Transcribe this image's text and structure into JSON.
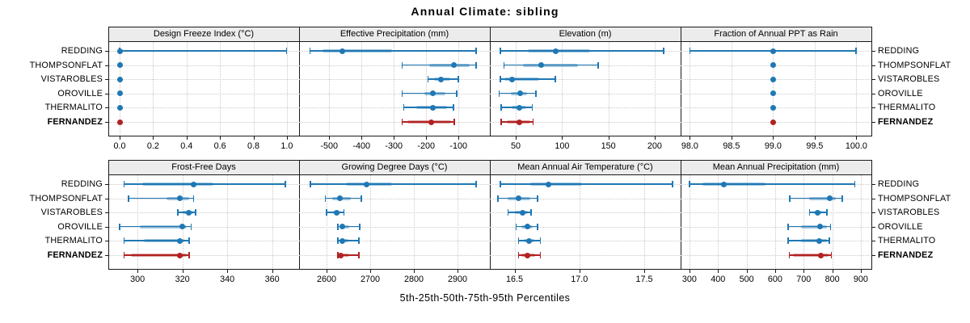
{
  "chart_data": {
    "type": "trellis_dot_whisker",
    "title": "Annual Climate: sibling",
    "caption": "5th-25th-50th-75th-95th Percentiles",
    "percentile_levels": [
      5,
      25,
      50,
      75,
      95
    ],
    "stations": [
      "REDDING",
      "THOMPSONFLAT",
      "VISTAROBLES",
      "OROVILLE",
      "THERMALITO",
      "FERNANDEZ"
    ],
    "highlight_station": "FERNANDEZ",
    "layout": {
      "rows": 2,
      "cols": 4,
      "grid": "dotted",
      "legend": "none"
    },
    "colors": {
      "series": "#1f78b4",
      "highlight": "#b22222",
      "strip_bg": "#ececec",
      "grid": "#c9c9c9",
      "border": "#1a1a1a"
    },
    "panels": [
      {
        "title": "Design Freeze Index (°C)",
        "xlim": [
          -0.068,
          1.073
        ],
        "ticks": [
          0.0,
          0.2,
          0.4,
          0.6,
          0.8,
          1.0
        ],
        "tick_labels": [
          "0.0",
          "0.2",
          "0.4",
          "0.6",
          "0.8",
          "1.0"
        ],
        "values": [
          [
            0,
            0,
            0,
            0,
            1.0
          ],
          [
            0,
            0,
            0,
            0,
            0
          ],
          [
            0,
            0,
            0,
            0,
            0
          ],
          [
            0,
            0,
            0,
            0,
            0
          ],
          [
            0,
            0,
            0,
            0,
            0
          ],
          [
            0,
            0,
            0,
            0,
            0
          ]
        ]
      },
      {
        "title": "Effective Precipitation (mm)",
        "xlim": [
          -593,
          -3
        ],
        "ticks": [
          -500,
          -400,
          -300,
          -200,
          -100
        ],
        "tick_labels": [
          "-500",
          "-400",
          "-300",
          "-200",
          "-100"
        ],
        "values": [
          [
            -560,
            -520,
            -460,
            -305,
            -45
          ],
          [
            -275,
            -190,
            -115,
            -65,
            -45
          ],
          [
            -195,
            -175,
            -155,
            -125,
            -100
          ],
          [
            -275,
            -205,
            -180,
            -140,
            -105
          ],
          [
            -270,
            -230,
            -180,
            -135,
            -115
          ],
          [
            -275,
            -258,
            -185,
            -122,
            -113
          ]
        ]
      },
      {
        "title": "Elevation (m)",
        "xlim": [
          22,
          228
        ],
        "ticks": [
          50,
          100,
          150,
          200
        ],
        "tick_labels": [
          "50",
          "100",
          "150",
          "200"
        ],
        "values": [
          [
            33,
            63,
            93,
            130,
            210
          ],
          [
            37,
            58,
            77,
            117,
            139
          ],
          [
            33,
            38,
            46,
            75,
            93
          ],
          [
            32,
            45,
            55,
            62,
            72
          ],
          [
            34,
            46,
            54,
            61,
            68
          ],
          [
            34,
            40,
            54,
            66,
            69
          ]
        ]
      },
      {
        "title": "Fraction of Annual PPT as Rain",
        "xlim": [
          97.89,
          100.18
        ],
        "ticks": [
          98.0,
          98.5,
          99.0,
          99.5,
          100.0
        ],
        "tick_labels": [
          "98.0",
          "98.5",
          "99.0",
          "99.5",
          "100.0"
        ],
        "values": [
          [
            98.0,
            99.0,
            99.0,
            99.0,
            100.0
          ],
          [
            99.0,
            99.0,
            99.0,
            99.0,
            99.0
          ],
          [
            99.0,
            99.0,
            99.0,
            99.0,
            99.0
          ],
          [
            99.0,
            99.0,
            99.0,
            99.0,
            99.0
          ],
          [
            99.0,
            99.0,
            99.0,
            99.0,
            99.0
          ],
          [
            99.0,
            99.0,
            99.0,
            99.0,
            99.0
          ]
        ]
      },
      {
        "title": "Frost-Free Days",
        "xlim": [
          287,
          372
        ],
        "ticks": [
          300,
          320,
          340,
          360
        ],
        "tick_labels": [
          "300",
          "320",
          "340",
          "360"
        ],
        "values": [
          [
            294,
            302,
            325,
            334,
            366
          ],
          [
            296,
            313,
            319,
            323,
            325
          ],
          [
            318,
            320,
            323,
            325,
            326
          ],
          [
            292,
            301,
            320,
            322,
            324
          ],
          [
            294,
            303,
            319,
            321,
            323
          ],
          [
            294,
            297,
            319,
            322,
            323
          ]
        ]
      },
      {
        "title": "Growing Degree Days (°C)",
        "xlim": [
          2537,
          2974
        ],
        "ticks": [
          2600,
          2700,
          2800,
          2900
        ],
        "tick_labels": [
          "2600",
          "2700",
          "2800",
          "2900"
        ],
        "values": [
          [
            2563,
            2645,
            2692,
            2750,
            2943
          ],
          [
            2597,
            2612,
            2630,
            2655,
            2680
          ],
          [
            2600,
            2615,
            2624,
            2632,
            2640
          ],
          [
            2626,
            2630,
            2636,
            2652,
            2676
          ],
          [
            2626,
            2630,
            2636,
            2650,
            2674
          ],
          [
            2626,
            2628,
            2632,
            2652,
            2674
          ]
        ]
      },
      {
        "title": "Mean Annual Air Temperature (°C)",
        "xlim": [
          16.31,
          17.78
        ],
        "ticks": [
          16.5,
          17.0,
          17.5
        ],
        "tick_labels": [
          "16.5",
          "17.0",
          "17.5"
        ],
        "values": [
          [
            16.39,
            16.62,
            16.76,
            17.02,
            17.72
          ],
          [
            16.37,
            16.45,
            16.53,
            16.62,
            16.68
          ],
          [
            16.45,
            16.5,
            16.56,
            16.6,
            16.63
          ],
          [
            16.51,
            16.55,
            16.6,
            16.64,
            16.68
          ],
          [
            16.53,
            16.57,
            16.61,
            16.65,
            16.7
          ],
          [
            16.53,
            16.55,
            16.6,
            16.66,
            16.7
          ]
        ]
      },
      {
        "title": "Mean Annual Precipitation (mm)",
        "xlim": [
          269,
          937
        ],
        "ticks": [
          300,
          400,
          500,
          600,
          700,
          800,
          900
        ],
        "tick_labels": [
          "300",
          "400",
          "500",
          "600",
          "700",
          "800",
          "900"
        ],
        "values": [
          [
            300,
            345,
            420,
            565,
            880
          ],
          [
            650,
            720,
            790,
            812,
            835
          ],
          [
            720,
            737,
            750,
            765,
            782
          ],
          [
            645,
            690,
            757,
            782,
            795
          ],
          [
            645,
            690,
            755,
            780,
            790
          ],
          [
            649,
            662,
            760,
            788,
            797
          ]
        ]
      }
    ]
  }
}
